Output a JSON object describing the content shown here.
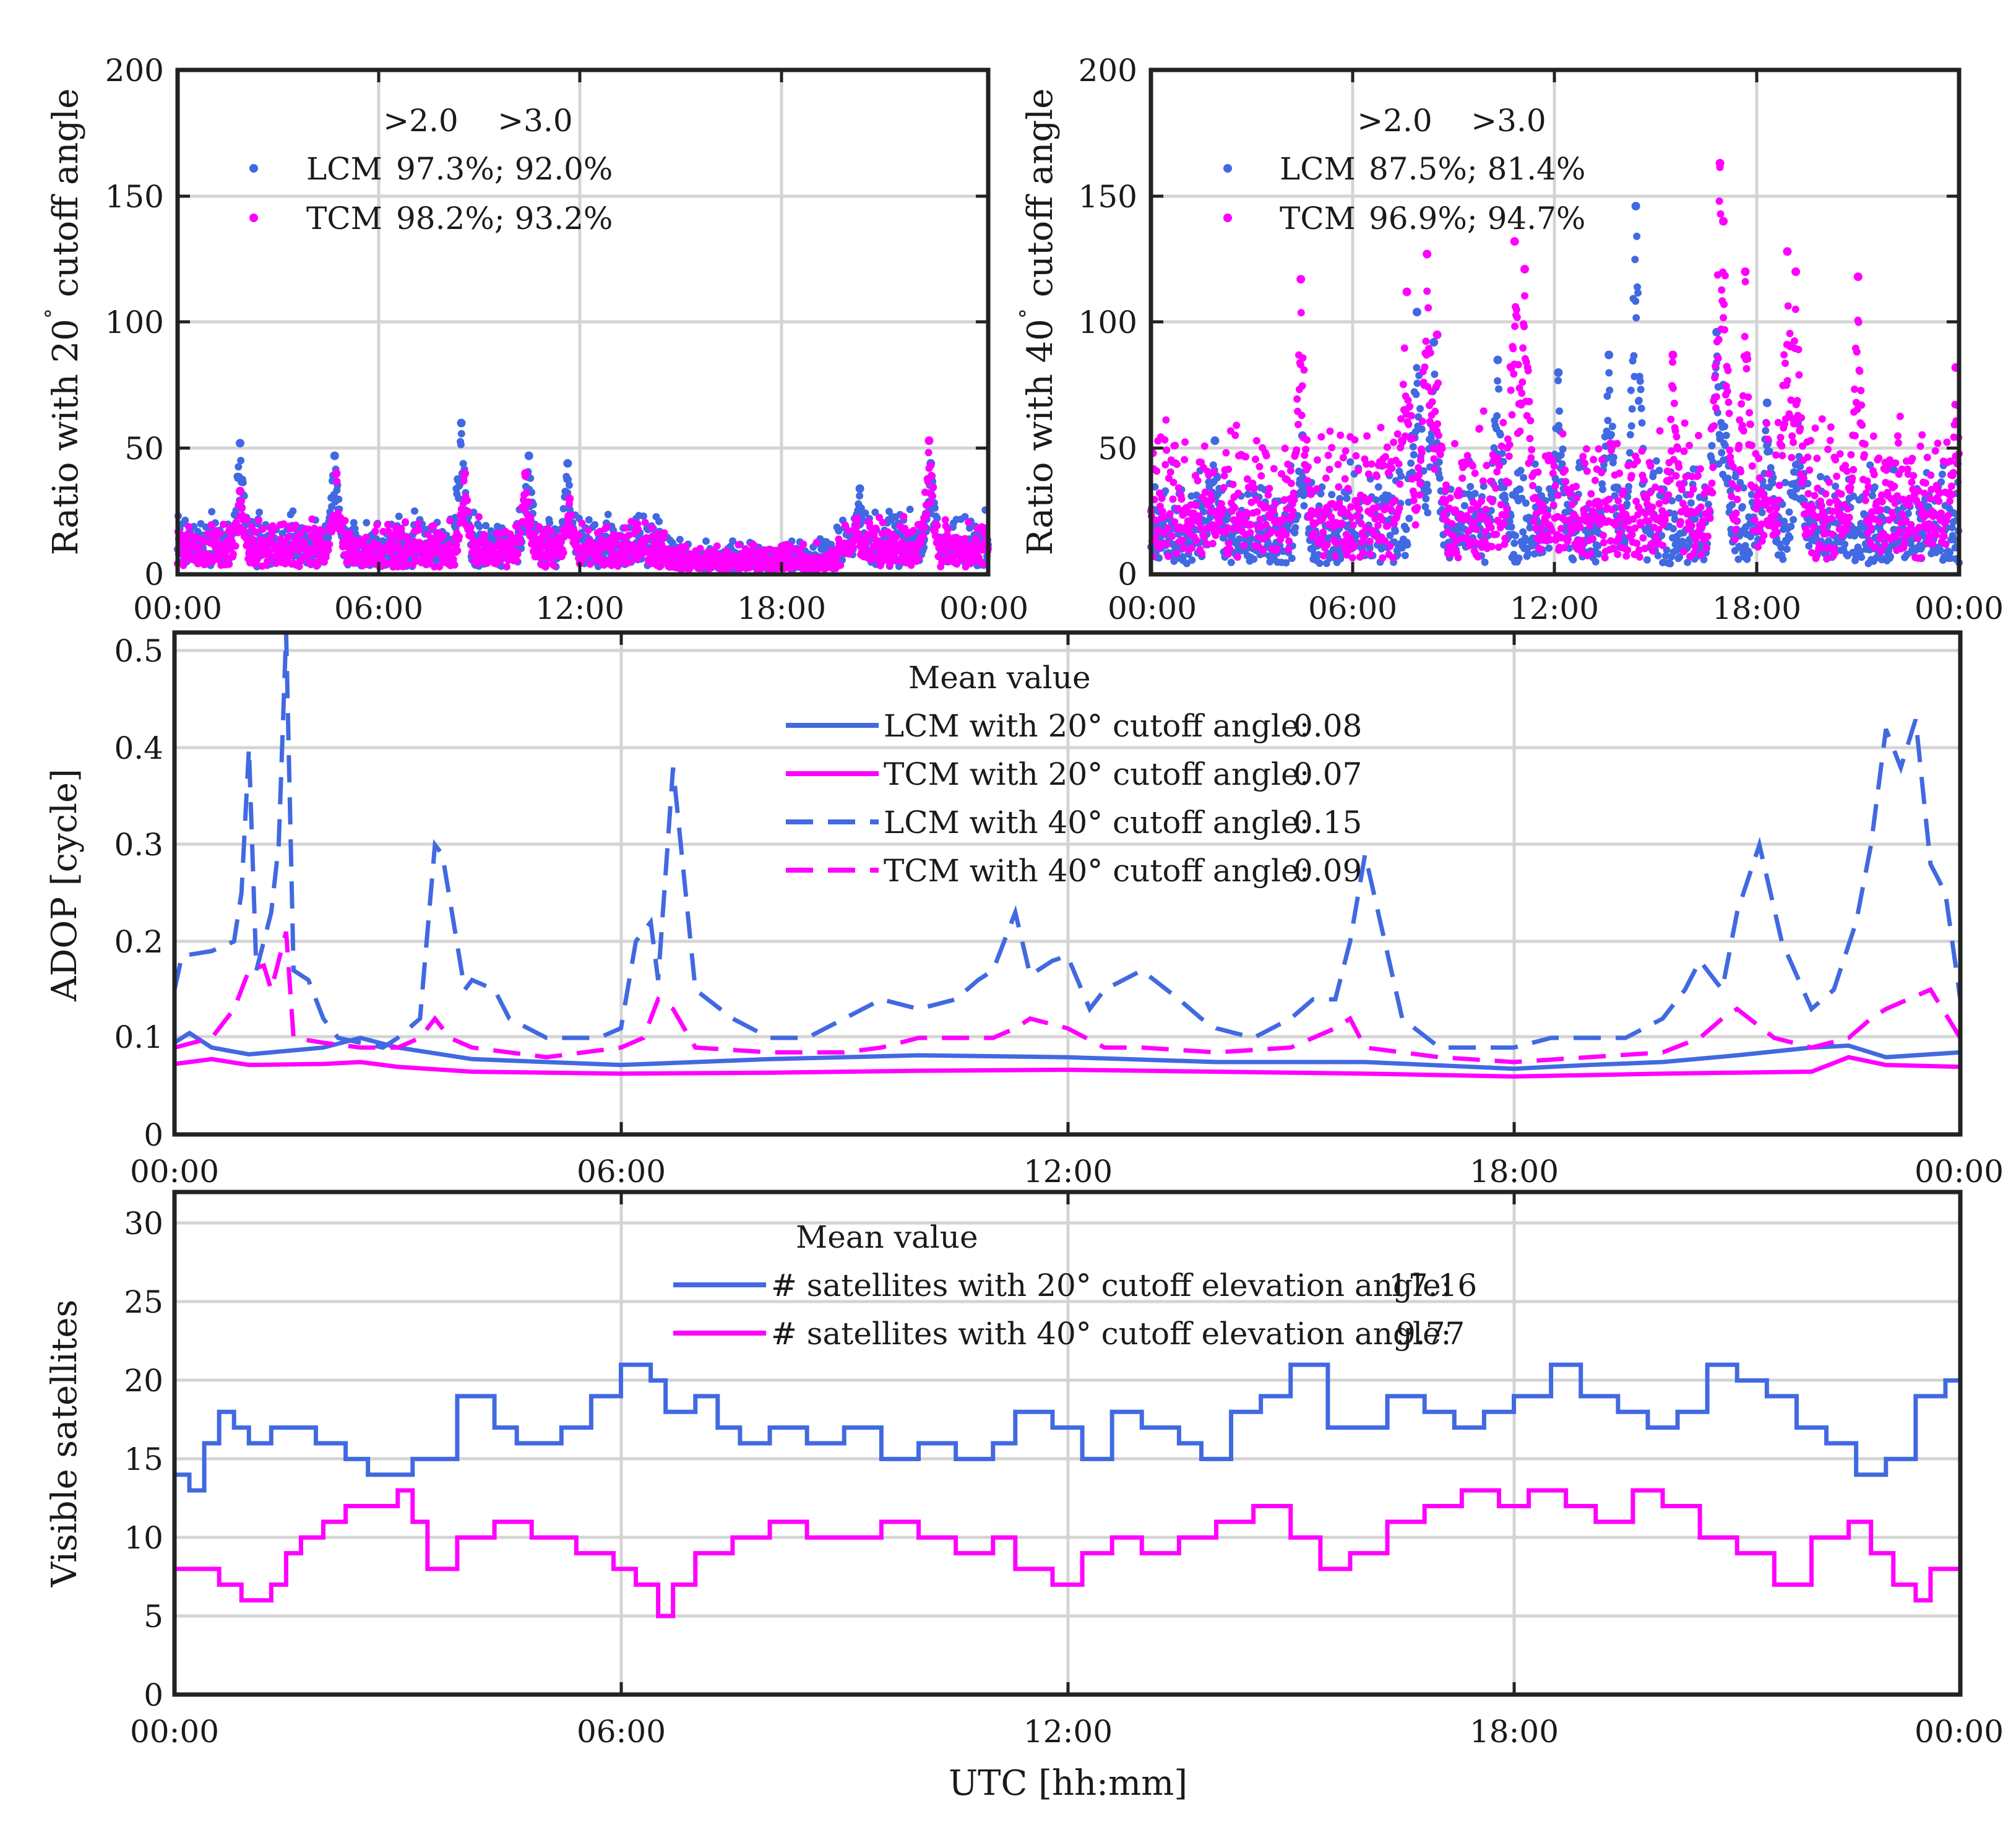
{
  "colors": {
    "lcm": "#4169E1",
    "tcm": "#FF00FF",
    "axis": "#222222",
    "grid": "#d4d4d4"
  },
  "x_ticks": [
    "00:00",
    "06:00",
    "12:00",
    "18:00",
    "00:00"
  ],
  "chart_data": [
    {
      "id": "ratio20",
      "type": "scatter",
      "ylabel": "Ratio with 20° cutoff angle",
      "ylabel_pre": "Ratio with 20",
      "ylabel_deg": "°",
      "ylabel_post": " cutoff angle",
      "ylim": [
        0,
        200
      ],
      "y_ticks": [
        "0",
        "50",
        "100",
        "150",
        "200"
      ],
      "xlim": [
        0,
        24
      ],
      "legend": {
        "header1": ">2.0",
        "header2": ">3.0",
        "rows": [
          {
            "series": "LCM",
            "label": "LCM",
            "text": "97.3%;  92.0%",
            "marker": "blue-dot"
          },
          {
            "series": "TCM",
            "label": "TCM",
            "text": "98.2%;  93.2%",
            "marker": "magenta-dot"
          }
        ]
      },
      "series": [
        {
          "name": "LCM",
          "color_key": "lcm",
          "base": 10,
          "noise": 14,
          "spikes": [
            [
              1.85,
              52
            ],
            [
              4.65,
              47
            ],
            [
              8.4,
              60
            ],
            [
              10.4,
              47
            ],
            [
              11.55,
              44
            ],
            [
              20.2,
              34
            ],
            [
              22.3,
              44
            ]
          ]
        },
        {
          "name": "TCM",
          "color_key": "tcm",
          "base": 9,
          "noise": 12,
          "spikes": [
            [
              1.85,
              33
            ],
            [
              4.7,
              40
            ],
            [
              8.5,
              40
            ],
            [
              10.3,
              40
            ],
            [
              11.6,
              30
            ],
            [
              20.1,
              22
            ],
            [
              22.25,
              53
            ]
          ]
        }
      ]
    },
    {
      "id": "ratio40",
      "type": "scatter",
      "ylabel": "Ratio with 40° cutoff angle",
      "ylabel_pre": "Ratio with 40",
      "ylabel_deg": "°",
      "ylabel_post": " cutoff angle",
      "ylim": [
        0,
        200
      ],
      "y_ticks": [
        "0",
        "50",
        "100",
        "150",
        "200"
      ],
      "xlim": [
        0,
        24
      ],
      "legend": {
        "header1": ">2.0",
        "header2": ">3.0",
        "rows": [
          {
            "series": "LCM",
            "label": "LCM",
            "text": "87.5%;  81.4%",
            "marker": "blue-dot"
          },
          {
            "series": "TCM",
            "label": "TCM",
            "text": "96.9%;  94.7%",
            "marker": "magenta-dot"
          }
        ]
      },
      "series": [
        {
          "name": "LCM",
          "color_key": "lcm",
          "base": 14,
          "noise": 28,
          "spikes": [
            [
              1.9,
              53
            ],
            [
              4.5,
              55
            ],
            [
              7.9,
              104
            ],
            [
              8.4,
              92
            ],
            [
              10.3,
              85
            ],
            [
              12.1,
              80
            ],
            [
              13.6,
              87
            ],
            [
              14.4,
              146
            ],
            [
              16.8,
              96
            ],
            [
              17.0,
              75
            ],
            [
              18.3,
              68
            ],
            [
              19.2,
              60
            ]
          ]
        },
        {
          "name": "TCM",
          "color_key": "tcm",
          "base": 20,
          "noise": 40,
          "spikes": [
            [
              4.45,
              117
            ],
            [
              7.6,
              112
            ],
            [
              8.2,
              127
            ],
            [
              8.5,
              95
            ],
            [
              10.8,
              132
            ],
            [
              11.1,
              121
            ],
            [
              15.5,
              87
            ],
            [
              16.9,
              163
            ],
            [
              17.0,
              140
            ],
            [
              17.65,
              120
            ],
            [
              18.9,
              128
            ],
            [
              19.15,
              120
            ],
            [
              21.0,
              118
            ],
            [
              23.9,
              82
            ]
          ]
        }
      ]
    },
    {
      "id": "adop",
      "type": "line",
      "ylabel": "ADOP [cycle]",
      "ylim": [
        0,
        0.52
      ],
      "y_ticks": [
        "0",
        "0.1",
        "0.2",
        "0.3",
        "0.4",
        "0.5"
      ],
      "y_tick_values": [
        0,
        0.1,
        0.2,
        0.3,
        0.4,
        0.5
      ],
      "xlim": [
        0,
        24
      ],
      "legend": {
        "header": "Mean value",
        "rows": [
          {
            "series": "LCM 20",
            "label": "LCM with 20° cutoff angle:",
            "value": "0.08",
            "style": "solid",
            "color_key": "lcm"
          },
          {
            "series": "TCM 20",
            "label": "TCM with 20° cutoff angle:",
            "value": "0.07",
            "style": "solid",
            "color_key": "tcm"
          },
          {
            "series": "LCM 40",
            "label": "LCM with 40° cutoff angle:",
            "value": "0.15",
            "style": "dashed",
            "color_key": "lcm"
          },
          {
            "series": "TCM 40",
            "label": "TCM with 40° cutoff angle:",
            "value": "0.09",
            "style": "dashed",
            "color_key": "tcm"
          }
        ]
      },
      "series": [
        {
          "name": "LCM with 20° cutoff angle",
          "color_key": "lcm",
          "dash": false,
          "x": [
            0,
            0.2,
            0.5,
            1.0,
            2.0,
            2.5,
            3.0,
            4.0,
            6.0,
            8.0,
            10.0,
            12.0,
            14.0,
            16.0,
            18.0,
            19.0,
            20.0,
            21.0,
            22.0,
            22.5,
            23.0,
            24.0
          ],
          "y": [
            0.095,
            0.105,
            0.09,
            0.083,
            0.09,
            0.1,
            0.09,
            0.078,
            0.072,
            0.078,
            0.082,
            0.08,
            0.075,
            0.075,
            0.068,
            0.072,
            0.075,
            0.082,
            0.09,
            0.092,
            0.08,
            0.085
          ]
        },
        {
          "name": "TCM with 20° cutoff angle",
          "color_key": "tcm",
          "dash": false,
          "x": [
            0,
            0.5,
            1.0,
            2.0,
            2.5,
            3.0,
            4.0,
            6.0,
            8.0,
            10.0,
            12.0,
            14.0,
            16.0,
            18.0,
            20.0,
            22.0,
            22.5,
            23.0,
            24.0
          ],
          "y": [
            0.073,
            0.078,
            0.072,
            0.073,
            0.075,
            0.07,
            0.065,
            0.063,
            0.064,
            0.066,
            0.067,
            0.065,
            0.063,
            0.06,
            0.063,
            0.065,
            0.08,
            0.072,
            0.07
          ]
        },
        {
          "name": "LCM with 40° cutoff angle",
          "color_key": "lcm",
          "dash": true,
          "x": [
            0,
            0.1,
            0.5,
            0.8,
            0.9,
            1.0,
            1.1,
            1.2,
            1.3,
            1.4,
            1.5,
            1.6,
            1.8,
            2.0,
            2.2,
            2.8,
            3.0,
            3.3,
            3.5,
            3.6,
            3.9,
            4.0,
            4.3,
            4.5,
            5.0,
            5.5,
            5.7,
            6.0,
            6.2,
            6.4,
            6.5,
            6.7,
            7.0,
            7.5,
            8.0,
            8.5,
            9.0,
            9.5,
            10.0,
            10.5,
            10.8,
            11.0,
            11.3,
            11.5,
            11.8,
            12.0,
            12.3,
            12.5,
            13.0,
            13.5,
            13.8,
            14.0,
            14.5,
            15.0,
            15.3,
            15.6,
            15.8,
            16.0,
            16.5,
            17.0,
            17.5,
            18.0,
            18.5,
            19.0,
            19.5,
            20.0,
            20.3,
            20.5,
            20.8,
            21.0,
            21.3,
            21.6,
            22.0,
            22.3,
            22.6,
            22.8,
            23.0,
            23.2,
            23.4,
            23.6,
            23.8,
            24.0
          ],
          "y": [
            0.15,
            0.185,
            0.19,
            0.2,
            0.25,
            0.4,
            0.17,
            0.2,
            0.23,
            0.3,
            0.52,
            0.17,
            0.16,
            0.12,
            0.1,
            0.09,
            0.1,
            0.12,
            0.3,
            0.29,
            0.15,
            0.16,
            0.15,
            0.12,
            0.1,
            0.1,
            0.1,
            0.11,
            0.2,
            0.22,
            0.16,
            0.38,
            0.15,
            0.12,
            0.1,
            0.1,
            0.12,
            0.14,
            0.13,
            0.14,
            0.16,
            0.17,
            0.23,
            0.165,
            0.18,
            0.185,
            0.13,
            0.15,
            0.17,
            0.14,
            0.12,
            0.11,
            0.1,
            0.12,
            0.14,
            0.14,
            0.2,
            0.29,
            0.12,
            0.09,
            0.09,
            0.09,
            0.1,
            0.1,
            0.1,
            0.12,
            0.15,
            0.18,
            0.15,
            0.23,
            0.3,
            0.2,
            0.13,
            0.15,
            0.22,
            0.3,
            0.42,
            0.38,
            0.43,
            0.28,
            0.25,
            0.14
          ]
        },
        {
          "name": "TCM with 40° cutoff angle",
          "color_key": "tcm",
          "dash": true,
          "x": [
            0,
            0.5,
            0.8,
            1.0,
            1.2,
            1.3,
            1.5,
            1.6,
            2.0,
            2.5,
            3.0,
            3.3,
            3.5,
            3.7,
            4.0,
            4.5,
            5.0,
            6.0,
            6.3,
            6.5,
            6.7,
            7.0,
            8.0,
            9.0,
            9.5,
            10.0,
            11.0,
            11.3,
            11.5,
            12.0,
            12.5,
            13.0,
            14.0,
            15.0,
            15.6,
            15.8,
            16.0,
            17.0,
            18.0,
            19.0,
            20.0,
            20.5,
            20.8,
            21.0,
            21.5,
            22.0,
            22.5,
            22.8,
            23.0,
            23.3,
            23.6,
            24.0
          ],
          "y": [
            0.09,
            0.1,
            0.13,
            0.17,
            0.175,
            0.15,
            0.21,
            0.1,
            0.095,
            0.09,
            0.09,
            0.1,
            0.12,
            0.1,
            0.09,
            0.085,
            0.08,
            0.09,
            0.1,
            0.14,
            0.13,
            0.09,
            0.085,
            0.085,
            0.09,
            0.1,
            0.1,
            0.11,
            0.12,
            0.11,
            0.09,
            0.09,
            0.085,
            0.09,
            0.11,
            0.12,
            0.09,
            0.08,
            0.075,
            0.08,
            0.085,
            0.1,
            0.12,
            0.13,
            0.1,
            0.09,
            0.1,
            0.12,
            0.13,
            0.14,
            0.15,
            0.1
          ]
        }
      ]
    },
    {
      "id": "sats",
      "type": "line",
      "ylabel": "Visible satellites",
      "ylim": [
        0,
        32
      ],
      "y_ticks": [
        "0",
        "5",
        "10",
        "15",
        "20",
        "25",
        "30"
      ],
      "y_tick_values": [
        0,
        5,
        10,
        15,
        20,
        25,
        30
      ],
      "xlim": [
        0,
        24
      ],
      "xlabel": "UTC [hh:mm]",
      "legend": {
        "header": "Mean value",
        "rows": [
          {
            "series": "20 deg",
            "label": "# satellites with 20° cutoff elevation angle:",
            "value": "17.16",
            "color_key": "lcm"
          },
          {
            "series": "40 deg",
            "label": "# satellites with 40° cutoff elevation angle:",
            "value": "9.77",
            "color_key": "tcm"
          }
        ]
      },
      "series": [
        {
          "name": "# satellites with 20° cutoff elevation angle",
          "color_key": "lcm",
          "step": true,
          "x": [
            0,
            0.2,
            0.4,
            0.6,
            0.8,
            1.0,
            1.3,
            1.5,
            1.9,
            2.3,
            2.6,
            3.2,
            3.8,
            4.3,
            4.6,
            5.0,
            5.2,
            5.6,
            6.0,
            6.4,
            6.6,
            7.0,
            7.3,
            7.6,
            8.0,
            8.5,
            9.0,
            9.5,
            10.0,
            10.5,
            11.0,
            11.3,
            11.8,
            12.2,
            12.6,
            13.0,
            13.5,
            13.8,
            14.2,
            14.6,
            15.0,
            15.5,
            15.9,
            16.3,
            16.8,
            17.2,
            17.6,
            18.0,
            18.5,
            18.9,
            19.4,
            19.8,
            20.2,
            20.6,
            21.0,
            21.4,
            21.8,
            22.2,
            22.6,
            23.0,
            23.4,
            23.8,
            24.0
          ],
          "y": [
            14,
            13,
            16,
            18,
            17,
            16,
            17,
            17,
            16,
            15,
            14,
            15,
            19,
            17,
            16,
            16,
            17,
            19,
            21,
            20,
            18,
            19,
            17,
            16,
            17,
            16,
            17,
            15,
            16,
            15,
            16,
            18,
            17,
            15,
            18,
            17,
            16,
            15,
            18,
            19,
            21,
            17,
            17,
            19,
            18,
            17,
            18,
            19,
            21,
            19,
            18,
            17,
            18,
            21,
            20,
            19,
            17,
            16,
            14,
            15,
            19,
            20,
            16
          ],
          "y_final": 16
        },
        {
          "name": "# satellites with 40° cutoff elevation angle",
          "color_key": "tcm",
          "step": true,
          "x": [
            0,
            0.6,
            0.9,
            1.2,
            1.3,
            1.5,
            1.7,
            2.0,
            2.3,
            3.0,
            3.2,
            3.4,
            3.8,
            4.3,
            4.8,
            5.4,
            5.9,
            6.2,
            6.5,
            6.7,
            7.0,
            7.5,
            8.0,
            8.5,
            9.0,
            9.5,
            10.0,
            10.5,
            11.0,
            11.3,
            11.8,
            12.2,
            12.6,
            13.0,
            13.5,
            14.0,
            14.5,
            15.0,
            15.4,
            15.8,
            16.3,
            16.8,
            17.3,
            17.8,
            18.2,
            18.7,
            19.1,
            19.6,
            20.0,
            20.5,
            21.0,
            21.5,
            22.0,
            22.5,
            22.8,
            23.1,
            23.4,
            23.6,
            24.0
          ],
          "y": [
            8,
            7,
            6,
            6,
            7,
            9,
            10,
            11,
            12,
            13,
            11,
            8,
            10,
            11,
            10,
            9,
            8,
            7,
            5,
            7,
            9,
            10,
            11,
            10,
            10,
            11,
            10,
            9,
            10,
            8,
            7,
            9,
            10,
            9,
            10,
            11,
            12,
            10,
            8,
            9,
            11,
            12,
            13,
            12,
            13,
            12,
            11,
            13,
            12,
            10,
            9,
            7,
            10,
            11,
            9,
            7,
            6,
            8,
            9
          ],
          "y_final": 9
        }
      ]
    }
  ]
}
